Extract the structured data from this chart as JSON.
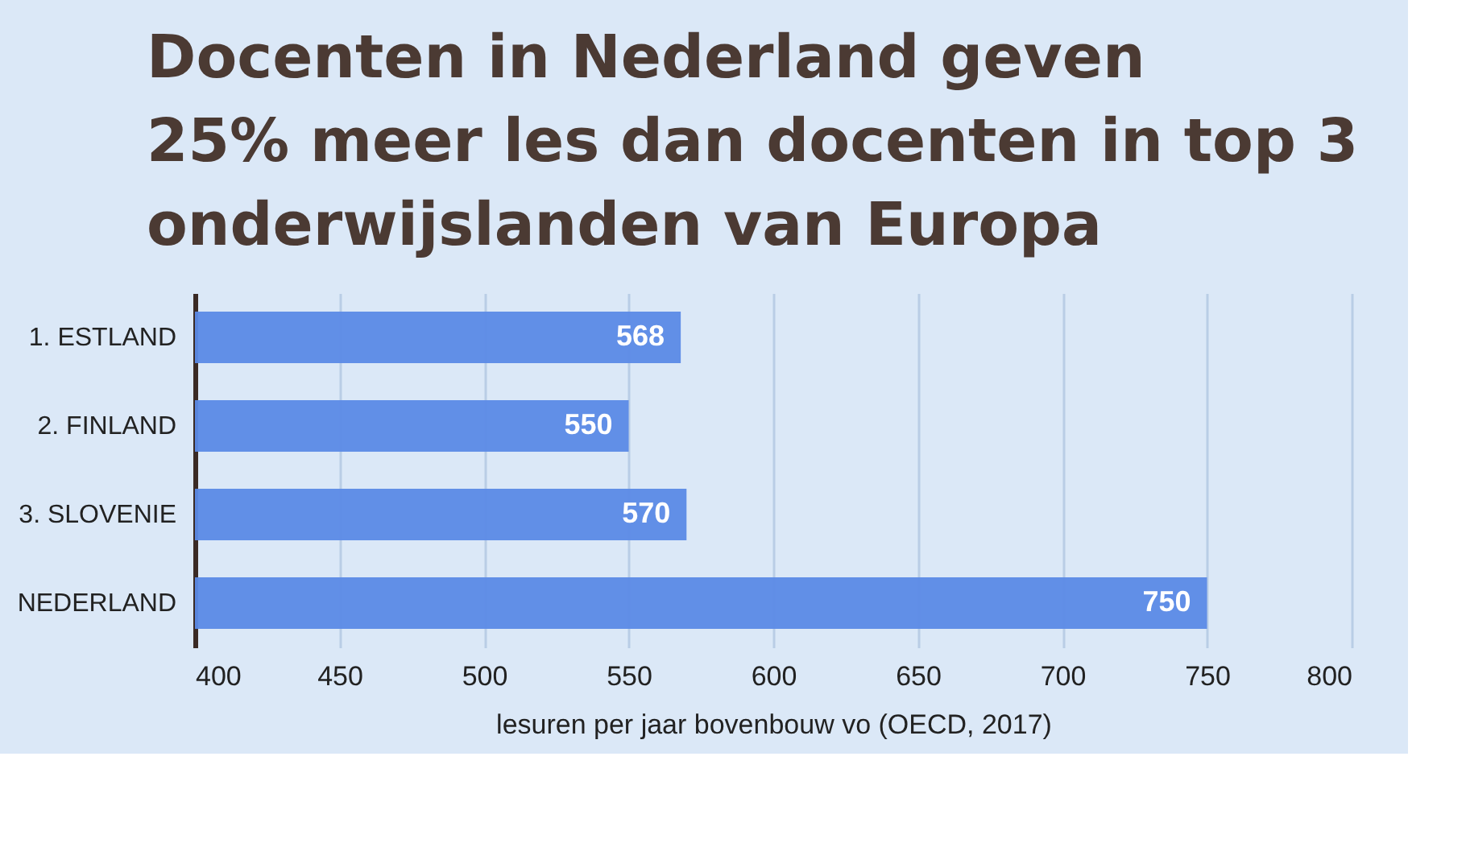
{
  "chart_data": {
    "type": "bar",
    "orientation": "horizontal",
    "title": "Docenten in Nederland geven\n25% meer les dan docenten in top 3\nonderwijslanden van Europa",
    "xlabel": "lesuren per jaar bovenbouw vo (OECD, 2017)",
    "categories": [
      "1. ESTLAND",
      "2. FINLAND",
      "3. SLOVENIE",
      "NEDERLAND"
    ],
    "values": [
      568,
      550,
      570,
      750
    ],
    "color": "#5b8ae6",
    "xlim": [
      400,
      800
    ],
    "xticks": [
      400,
      450,
      500,
      550,
      600,
      650,
      700,
      750,
      800
    ],
    "grid": "x",
    "data_labels": true
  }
}
